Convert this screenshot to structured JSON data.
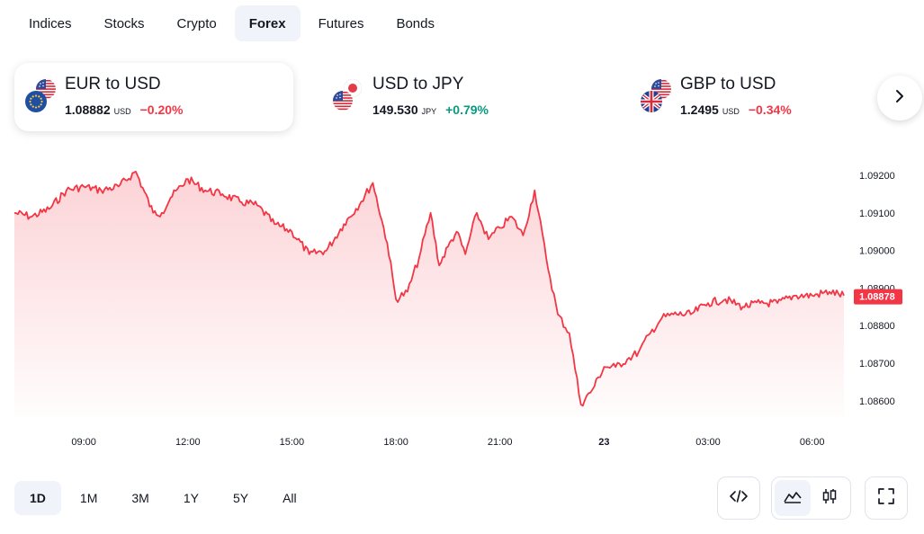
{
  "tabs": [
    {
      "label": "Indices",
      "active": false
    },
    {
      "label": "Stocks",
      "active": false
    },
    {
      "label": "Crypto",
      "active": false
    },
    {
      "label": "Forex",
      "active": true
    },
    {
      "label": "Futures",
      "active": false
    },
    {
      "label": "Bonds",
      "active": false
    }
  ],
  "cards": [
    {
      "name": "EUR to USD",
      "price": "1.08882",
      "currency": "USD",
      "change": "−0.20%",
      "direction": "neg",
      "selected": true,
      "flags": [
        "us-flag-icon",
        "eu-flag-icon"
      ]
    },
    {
      "name": "USD to JPY",
      "price": "149.530",
      "currency": "JPY",
      "change": "+0.79%",
      "direction": "pos",
      "selected": false,
      "flags": [
        "jp-flag-icon",
        "us-flag-icon"
      ]
    },
    {
      "name": "GBP to USD",
      "price": "1.2495",
      "currency": "USD",
      "change": "−0.34%",
      "direction": "neg",
      "selected": false,
      "flags": [
        "us-flag-icon",
        "uk-flag-icon"
      ]
    }
  ],
  "next_icon": "chevron-right-icon",
  "ranges": [
    {
      "label": "1D",
      "active": true
    },
    {
      "label": "1M",
      "active": false
    },
    {
      "label": "3M",
      "active": false
    },
    {
      "label": "1Y",
      "active": false
    },
    {
      "label": "5Y",
      "active": false
    },
    {
      "label": "All",
      "active": false
    }
  ],
  "tools": {
    "embed_icon": "code-icon",
    "area_icon": "area-chart-icon",
    "candles_icon": "candlestick-icon",
    "fullscreen_icon": "fullscreen-icon"
  },
  "colors": {
    "line": "#f23645",
    "negative": "#f23645",
    "positive": "#089981",
    "active_bg": "#f0f3fa"
  },
  "chart_data": {
    "type": "area",
    "ylim": [
      1.0855,
      1.0925
    ],
    "y_ticks": [
      "1.09200",
      "1.09100",
      "1.09000",
      "1.08900",
      "1.08800",
      "1.08700",
      "1.08600"
    ],
    "x_tick_labels": [
      "09:00",
      "12:00",
      "15:00",
      "18:00",
      "21:00",
      "23",
      "03:00",
      "06:00"
    ],
    "last_value_label": "1.08878",
    "grid": false,
    "series": [
      {
        "x": [
          "07:00",
          "07:30",
          "08:00",
          "08:30",
          "09:00",
          "09:30",
          "10:00",
          "10:30",
          "11:00",
          "11:15",
          "11:30",
          "12:00",
          "12:30",
          "13:00",
          "13:30",
          "14:00",
          "14:30",
          "15:00",
          "15:30",
          "16:00",
          "16:30",
          "17:00",
          "17:20",
          "17:45",
          "18:00",
          "18:20",
          "18:40",
          "19:00",
          "19:15",
          "19:30",
          "19:45",
          "20:00",
          "20:20",
          "20:40",
          "21:00",
          "21:20",
          "21:40",
          "22:00",
          "22:20",
          "22:40",
          "23:00",
          "23:20",
          "23:40",
          "00:00",
          "00:20",
          "00:40",
          "01:00",
          "01:20",
          "01:40",
          "02:00",
          "02:30",
          "03:00",
          "03:30",
          "04:00",
          "04:30",
          "05:00",
          "05:30",
          "06:00",
          "06:30",
          "06:55"
        ],
        "values": [
          1.091,
          1.0909,
          1.0911,
          1.0916,
          1.0917,
          1.0916,
          1.0917,
          1.0921,
          1.091,
          1.091,
          1.0914,
          1.0919,
          1.0916,
          1.0915,
          1.0913,
          1.0912,
          1.0907,
          1.0905,
          1.0899,
          1.09,
          1.0907,
          1.0913,
          1.0918,
          1.0902,
          1.0887,
          1.0889,
          1.0898,
          1.091,
          1.0896,
          1.0901,
          1.0905,
          1.0899,
          1.091,
          1.0903,
          1.0906,
          1.0909,
          1.0904,
          1.0916,
          1.0898,
          1.0883,
          1.0878,
          1.0859,
          1.0863,
          1.0869,
          1.0869,
          1.0871,
          1.0873,
          1.0878,
          1.0882,
          1.0883,
          1.0883,
          1.0886,
          1.0887,
          1.0885,
          1.0886,
          1.0886,
          1.0888,
          1.0888,
          1.0889,
          1.0888
        ]
      }
    ]
  }
}
